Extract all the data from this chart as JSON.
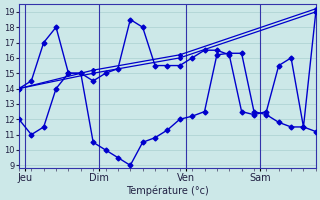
{
  "xlabel": "Température (°c)",
  "background_color": "#cce8e8",
  "grid_color": "#aad0d0",
  "line_color": "#0000cc",
  "vline_color": "#3333aa",
  "ylim": [
    8.8,
    19.5
  ],
  "yticks": [
    9,
    10,
    11,
    12,
    13,
    14,
    15,
    16,
    17,
    18,
    19
  ],
  "xlim": [
    0,
    24
  ],
  "day_labels": [
    "Jeu",
    "Dim",
    "Ven",
    "Sam"
  ],
  "day_positions": [
    0.5,
    6.5,
    13.5,
    19.5
  ],
  "vline_positions": [
    0.5,
    6.5,
    13.5,
    19.5
  ],
  "series": [
    {
      "x": [
        0,
        1,
        2,
        3,
        4,
        5,
        6,
        7,
        8,
        9,
        10,
        11,
        12,
        13,
        14,
        15,
        16,
        17,
        18,
        19,
        20,
        21,
        22,
        23,
        24
      ],
      "y": [
        12,
        11,
        11.5,
        14,
        15,
        15,
        10.5,
        10,
        9.5,
        9,
        10.5,
        10.8,
        11.3,
        12,
        12.2,
        12.5,
        16.2,
        16.3,
        16.3,
        12.5,
        12.3,
        11.8,
        11.5,
        11.5,
        11.2
      ]
    },
    {
      "x": [
        0,
        6,
        13,
        24
      ],
      "y": [
        14,
        15,
        16,
        19
      ]
    },
    {
      "x": [
        0,
        1,
        2,
        3,
        4,
        5,
        6,
        7,
        8,
        9,
        10,
        11,
        12,
        13,
        14,
        15,
        16,
        17,
        18,
        19,
        20,
        21,
        22,
        23,
        24
      ],
      "y": [
        14,
        14.5,
        17,
        18,
        15,
        15,
        14.5,
        15,
        15.3,
        18.5,
        18,
        15.5,
        15.5,
        15.5,
        16,
        16.5,
        16.5,
        16.2,
        12.5,
        12.3,
        12.5,
        15.5,
        16,
        11.5,
        19
      ]
    },
    {
      "x": [
        0,
        6,
        13,
        24
      ],
      "y": [
        14,
        15.2,
        16.2,
        19.2
      ]
    }
  ],
  "series_styles": [
    {
      "linestyle": "-",
      "marker": "D",
      "markersize": 2.5,
      "linewidth": 1.0
    },
    {
      "linestyle": "-",
      "marker": "D",
      "markersize": 2.0,
      "linewidth": 0.9
    },
    {
      "linestyle": "-",
      "marker": "D",
      "markersize": 2.5,
      "linewidth": 1.0
    },
    {
      "linestyle": "-",
      "marker": "D",
      "markersize": 2.0,
      "linewidth": 0.9
    }
  ]
}
